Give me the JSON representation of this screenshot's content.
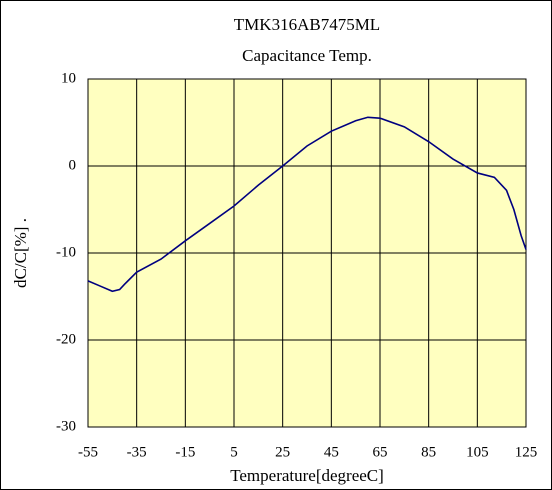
{
  "chart_data": {
    "type": "line",
    "title": "TMK316AB7475ML",
    "subtitle": "Capacitance Temp.",
    "xlabel": "Temperature[degreeC]",
    "ylabel": "dC/C[%] .",
    "x": [
      -55,
      -50,
      -45,
      -42,
      -40,
      -35,
      -25,
      -15,
      -5,
      5,
      15,
      25,
      35,
      45,
      55,
      60,
      65,
      75,
      85,
      95,
      105,
      112,
      117,
      120,
      123,
      125
    ],
    "series": [
      {
        "color": "#000080",
        "values": [
          -13.2,
          -13.8,
          -14.4,
          -14.2,
          -13.6,
          -12.2,
          -10.7,
          -8.6,
          -6.6,
          -4.6,
          -2.2,
          0,
          2.3,
          4.0,
          5.2,
          5.6,
          5.5,
          4.5,
          2.8,
          0.8,
          -0.8,
          -1.3,
          -2.8,
          -5,
          -8,
          -9.6
        ]
      }
    ],
    "xlim": [
      -55,
      125
    ],
    "xticks": [
      -55,
      -35,
      -15,
      5,
      25,
      45,
      65,
      85,
      105,
      125
    ],
    "ylim": [
      -30,
      10
    ],
    "yticks": [
      -30,
      -20,
      -10,
      0,
      10
    ],
    "grid": true,
    "background": "#ffffc0"
  }
}
